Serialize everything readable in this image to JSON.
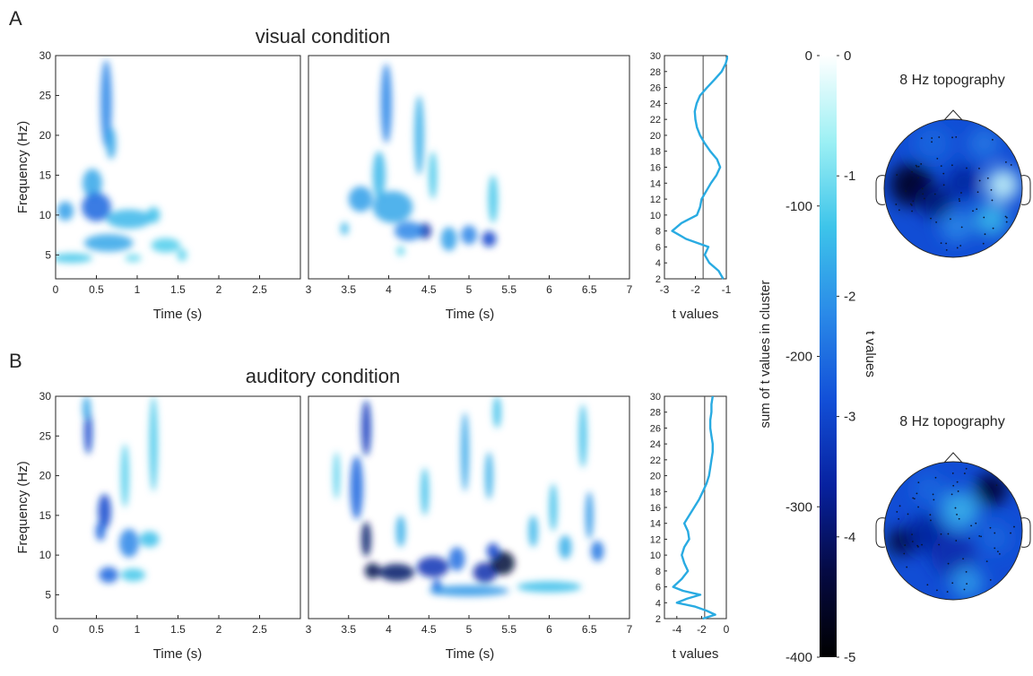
{
  "chart_data": {
    "type": "heatmap",
    "panel_labels": [
      "A",
      "B"
    ],
    "rows": [
      {
        "condition_title": "visual condition",
        "tf_panels": [
          {
            "xlabel": "Time (s)",
            "ylabel": "Frequency (Hz)",
            "xlim": [
              0,
              3
            ],
            "ylim": [
              2,
              30
            ],
            "xticks": [
              "0",
              "0.5",
              "1",
              "1.5",
              "2",
              "2.5"
            ],
            "yticks": [
              "5",
              "10",
              "15",
              "20",
              "25",
              "30"
            ],
            "blobs": [
              {
                "t": 0.62,
                "f": 24,
                "st": 0.07,
                "sf": 5.5,
                "v": -2.2
              },
              {
                "t": 0.68,
                "f": 19,
                "st": 0.06,
                "sf": 2,
                "v": -1.8
              },
              {
                "t": 0.45,
                "f": 14,
                "st": 0.12,
                "sf": 1.8,
                "v": -1.8
              },
              {
                "t": 0.5,
                "f": 11,
                "st": 0.18,
                "sf": 1.8,
                "v": -2.6
              },
              {
                "t": 0.12,
                "f": 10.5,
                "st": 0.1,
                "sf": 1.2,
                "v": -1.9
              },
              {
                "t": 0.9,
                "f": 9.5,
                "st": 0.28,
                "sf": 1.2,
                "v": -1.6
              },
              {
                "t": 1.2,
                "f": 10,
                "st": 0.08,
                "sf": 1,
                "v": -1.5
              },
              {
                "t": 0.65,
                "f": 6.5,
                "st": 0.3,
                "sf": 1.1,
                "v": -1.8
              },
              {
                "t": 1.35,
                "f": 6.2,
                "st": 0.18,
                "sf": 0.9,
                "v": -1.3
              },
              {
                "t": 1.55,
                "f": 5,
                "st": 0.06,
                "sf": 0.8,
                "v": -1.2
              },
              {
                "t": 0.2,
                "f": 4.6,
                "st": 0.25,
                "sf": 0.6,
                "v": -1.4
              },
              {
                "t": 0.95,
                "f": 4.6,
                "st": 0.1,
                "sf": 0.5,
                "v": -1.1
              }
            ]
          },
          {
            "xlabel": "Time (s)",
            "ylabel": "",
            "xlim": [
              3,
              7
            ],
            "ylim": [
              2,
              30
            ],
            "xticks": [
              "3",
              "3.5",
              "4",
              "4.5",
              "5",
              "5.5",
              "6",
              "6.5",
              "7"
            ],
            "yticks": [],
            "blobs": [
              {
                "t": 3.97,
                "f": 24,
                "st": 0.07,
                "sf": 5,
                "v": -2.2
              },
              {
                "t": 4.38,
                "f": 20,
                "st": 0.06,
                "sf": 5,
                "v": -1.7
              },
              {
                "t": 4.55,
                "f": 15,
                "st": 0.05,
                "sf": 3,
                "v": -1.4
              },
              {
                "t": 3.88,
                "f": 15,
                "st": 0.08,
                "sf": 3,
                "v": -1.6
              },
              {
                "t": 3.65,
                "f": 12,
                "st": 0.15,
                "sf": 1.6,
                "v": -1.9
              },
              {
                "t": 4.05,
                "f": 11,
                "st": 0.25,
                "sf": 2,
                "v": -1.8
              },
              {
                "t": 3.45,
                "f": 8.3,
                "st": 0.05,
                "sf": 0.8,
                "v": -1.6
              },
              {
                "t": 4.45,
                "f": 8,
                "st": 0.08,
                "sf": 1,
                "v": -3.4
              },
              {
                "t": 4.25,
                "f": 8,
                "st": 0.18,
                "sf": 1.2,
                "v": -2.2
              },
              {
                "t": 4.75,
                "f": 7,
                "st": 0.1,
                "sf": 1.5,
                "v": -1.9
              },
              {
                "t": 5,
                "f": 7.5,
                "st": 0.1,
                "sf": 1.2,
                "v": -2.2
              },
              {
                "t": 5.25,
                "f": 7,
                "st": 0.09,
                "sf": 1,
                "v": -3
              },
              {
                "t": 5.3,
                "f": 12,
                "st": 0.06,
                "sf": 3,
                "v": -1.4
              },
              {
                "t": 4.15,
                "f": 5.5,
                "st": 0.05,
                "sf": 0.6,
                "v": -1.2
              }
            ]
          }
        ],
        "profile": {
          "xlabel": "t values",
          "xlim": [
            -3,
            -1
          ],
          "xticks": [
            "-3",
            "-2",
            "-1"
          ],
          "yticks": [
            "2",
            "4",
            "6",
            "8",
            "10",
            "12",
            "14",
            "16",
            "18",
            "20",
            "22",
            "24",
            "26",
            "28",
            "30"
          ],
          "threshold": -1.75,
          "freq": [
            2,
            3,
            4,
            5,
            6,
            7,
            8,
            9,
            10,
            11,
            12,
            13,
            14,
            15,
            16,
            17,
            18,
            19,
            20,
            21,
            22,
            23,
            24,
            25,
            26,
            27,
            28,
            29,
            30
          ],
          "values": [
            -1.1,
            -1.25,
            -1.55,
            -1.7,
            -1.58,
            -2.3,
            -2.75,
            -2.45,
            -1.95,
            -1.85,
            -1.8,
            -1.65,
            -1.5,
            -1.32,
            -1.2,
            -1.3,
            -1.52,
            -1.7,
            -1.85,
            -1.95,
            -2.0,
            -2.02,
            -1.96,
            -1.85,
            -1.62,
            -1.38,
            -1.15,
            -1.02,
            -0.95
          ]
        },
        "topography": {
          "title": "8 Hz topography",
          "spots": [
            {
              "x": -0.6,
              "y": 0.05,
              "r": 0.4,
              "v": -4.6
            },
            {
              "x": -0.25,
              "y": -0.2,
              "r": 0.3,
              "v": -3.9
            },
            {
              "x": 0.15,
              "y": 0.1,
              "r": 0.3,
              "v": -3.6
            },
            {
              "x": 0.72,
              "y": 0.05,
              "r": 0.3,
              "v": -0.4
            },
            {
              "x": 0.55,
              "y": -0.45,
              "r": 0.3,
              "v": -1.6
            },
            {
              "x": 0.05,
              "y": -0.55,
              "r": 0.3,
              "v": -2.2
            },
            {
              "x": 0.45,
              "y": 0.65,
              "r": 0.3,
              "v": -2.4
            },
            {
              "x": -0.3,
              "y": 0.65,
              "r": 0.35,
              "v": -2.6
            }
          ]
        }
      },
      {
        "condition_title": "auditory condition",
        "tf_panels": [
          {
            "xlabel": "Time (s)",
            "ylabel": "Frequency (Hz)",
            "xlim": [
              0,
              3
            ],
            "ylim": [
              2,
              30
            ],
            "xticks": [
              "0",
              "0.5",
              "1",
              "1.5",
              "2",
              "2.5"
            ],
            "yticks": [
              "5",
              "10",
              "15",
              "20",
              "25",
              "30"
            ],
            "blobs": [
              {
                "t": 0.4,
                "f": 25.5,
                "st": 0.05,
                "sf": 2.8,
                "v": -3
              },
              {
                "t": 0.38,
                "f": 28.5,
                "st": 0.05,
                "sf": 1.5,
                "v": -1.8
              },
              {
                "t": 0.6,
                "f": 15.5,
                "st": 0.08,
                "sf": 2.2,
                "v": -3
              },
              {
                "t": 0.55,
                "f": 13,
                "st": 0.06,
                "sf": 1.2,
                "v": -2.6
              },
              {
                "t": 0.9,
                "f": 11.5,
                "st": 0.12,
                "sf": 1.8,
                "v": -2.2
              },
              {
                "t": 0.65,
                "f": 7.5,
                "st": 0.12,
                "sf": 1,
                "v": -2.6
              },
              {
                "t": 1.15,
                "f": 12,
                "st": 0.12,
                "sf": 1,
                "v": -1.5
              },
              {
                "t": 1.2,
                "f": 24,
                "st": 0.05,
                "sf": 6,
                "v": -1.4
              },
              {
                "t": 0.85,
                "f": 20,
                "st": 0.05,
                "sf": 4,
                "v": -1.3
              },
              {
                "t": 0.95,
                "f": 7.5,
                "st": 0.15,
                "sf": 0.8,
                "v": -1.4
              }
            ]
          },
          {
            "xlabel": "Time (s)",
            "ylabel": "",
            "xlim": [
              3,
              7
            ],
            "ylim": [
              2,
              30
            ],
            "xticks": [
              "3",
              "3.5",
              "4",
              "4.5",
              "5",
              "5.5",
              "6",
              "6.5",
              "7"
            ],
            "yticks": [],
            "blobs": [
              {
                "t": 3.72,
                "f": 26,
                "st": 0.06,
                "sf": 3.5,
                "v": -3.2
              },
              {
                "t": 3.6,
                "f": 18.5,
                "st": 0.08,
                "sf": 4,
                "v": -2.6
              },
              {
                "t": 3.72,
                "f": 12,
                "st": 0.06,
                "sf": 2.2,
                "v": -4
              },
              {
                "t": 3.8,
                "f": 8,
                "st": 0.1,
                "sf": 1,
                "v": -4.2
              },
              {
                "t": 4.1,
                "f": 7.8,
                "st": 0.22,
                "sf": 1.1,
                "v": -4
              },
              {
                "t": 4.55,
                "f": 8.5,
                "st": 0.2,
                "sf": 1.3,
                "v": -3.3
              },
              {
                "t": 4.85,
                "f": 9.5,
                "st": 0.1,
                "sf": 1.5,
                "v": -2.5
              },
              {
                "t": 5.2,
                "f": 7.8,
                "st": 0.15,
                "sf": 1.3,
                "v": -3.4
              },
              {
                "t": 5.42,
                "f": 9,
                "st": 0.15,
                "sf": 1.5,
                "v": -4.4
              },
              {
                "t": 5.3,
                "f": 10.5,
                "st": 0.08,
                "sf": 1,
                "v": -3
              },
              {
                "t": 4.6,
                "f": 6,
                "st": 0.06,
                "sf": 1,
                "v": -2.7
              },
              {
                "t": 5.0,
                "f": 5.5,
                "st": 0.5,
                "sf": 0.7,
                "v": -2
              },
              {
                "t": 6.0,
                "f": 6,
                "st": 0.4,
                "sf": 0.7,
                "v": -1.5
              },
              {
                "t": 6.6,
                "f": 10.5,
                "st": 0.08,
                "sf": 1.3,
                "v": -2.4
              },
              {
                "t": 6.5,
                "f": 15,
                "st": 0.05,
                "sf": 3,
                "v": -2
              },
              {
                "t": 6.42,
                "f": 25,
                "st": 0.05,
                "sf": 4,
                "v": -1.5
              },
              {
                "t": 4.95,
                "f": 23,
                "st": 0.05,
                "sf": 5,
                "v": -1.8
              },
              {
                "t": 5.25,
                "f": 20,
                "st": 0.05,
                "sf": 3,
                "v": -1.7
              },
              {
                "t": 5.35,
                "f": 28,
                "st": 0.05,
                "sf": 2,
                "v": -1.5
              },
              {
                "t": 4.45,
                "f": 18,
                "st": 0.05,
                "sf": 3,
                "v": -1.5
              },
              {
                "t": 6.05,
                "f": 16,
                "st": 0.05,
                "sf": 3,
                "v": -1.5
              },
              {
                "t": 3.35,
                "f": 20,
                "st": 0.04,
                "sf": 3,
                "v": -1.3
              },
              {
                "t": 5.8,
                "f": 13,
                "st": 0.06,
                "sf": 2,
                "v": -1.6
              },
              {
                "t": 4.15,
                "f": 13,
                "st": 0.06,
                "sf": 2,
                "v": -1.7
              },
              {
                "t": 6.2,
                "f": 11,
                "st": 0.08,
                "sf": 1.5,
                "v": -1.7
              }
            ]
          }
        ],
        "profile": {
          "xlabel": "t values",
          "xlim": [
            -5,
            0
          ],
          "xticks": [
            "-4",
            "-2",
            "0"
          ],
          "xtick_values": [
            -4,
            -2,
            0
          ],
          "yticks": [
            "2",
            "4",
            "6",
            "8",
            "10",
            "12",
            "14",
            "16",
            "18",
            "20",
            "22",
            "24",
            "26",
            "28",
            "30"
          ],
          "threshold": -1.75,
          "freq": [
            2,
            2.5,
            3,
            3.5,
            4,
            4.5,
            5,
            5.5,
            6,
            7,
            8,
            9,
            10,
            11,
            12,
            13,
            14,
            15,
            16,
            17,
            18,
            19,
            20,
            21,
            22,
            23,
            24,
            25,
            26,
            27,
            28,
            29,
            30
          ],
          "values": [
            -1.9,
            -0.9,
            -1.6,
            -2.5,
            -4.0,
            -3.2,
            -2.1,
            -3.5,
            -4.3,
            -3.6,
            -3.1,
            -3.4,
            -3.6,
            -3.4,
            -3.0,
            -3.1,
            -3.4,
            -3.0,
            -2.6,
            -2.2,
            -1.9,
            -1.6,
            -1.4,
            -1.3,
            -1.2,
            -1.1,
            -1.1,
            -1.2,
            -1.3,
            -1.3,
            -1.2,
            -1.2,
            -1.1
          ]
        },
        "topography": {
          "title": "8 Hz topography",
          "spots": [
            {
              "x": -0.72,
              "y": -0.15,
              "r": 0.25,
              "v": -5
            },
            {
              "x": -0.4,
              "y": -0.05,
              "r": 0.35,
              "v": -3.6
            },
            {
              "x": 0.55,
              "y": 0.6,
              "r": 0.3,
              "v": -4.5
            },
            {
              "x": 0.0,
              "y": -0.35,
              "r": 0.4,
              "v": -3.4
            },
            {
              "x": 0.1,
              "y": 0.3,
              "r": 0.35,
              "v": -1.7
            },
            {
              "x": 0.6,
              "y": -0.1,
              "r": 0.3,
              "v": -2.6
            },
            {
              "x": -0.35,
              "y": 0.6,
              "r": 0.3,
              "v": -2.6
            },
            {
              "x": 0.2,
              "y": -0.75,
              "r": 0.3,
              "v": -2.0
            }
          ]
        }
      }
    ],
    "colorbar": {
      "left_label": "sum of t values in cluster",
      "left_ticks": [
        "0",
        "-100",
        "-200",
        "-300",
        "-400"
      ],
      "left_range": [
        -400,
        0
      ],
      "right_label": "t values",
      "right_ticks": [
        "0",
        "-1",
        "-2",
        "-3",
        "-4",
        "-5"
      ],
      "right_range": [
        -5,
        0
      ],
      "colormap": [
        "#000000",
        "#050a44",
        "#0722a0",
        "#1250d8",
        "#2a8ae8",
        "#3dc4ea",
        "#9cf0f4",
        "#ffffff"
      ]
    }
  }
}
